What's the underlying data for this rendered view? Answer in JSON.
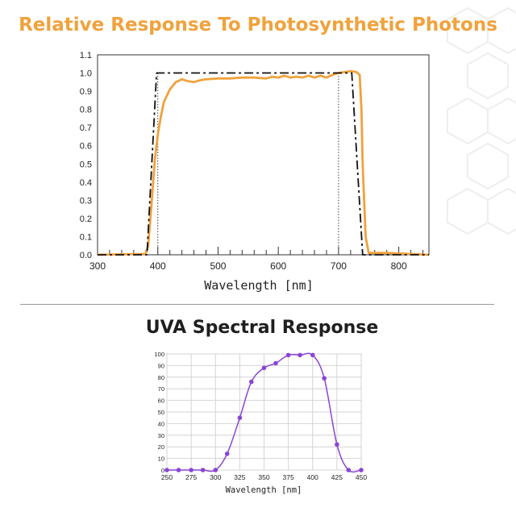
{
  "chart_data": [
    {
      "type": "line",
      "title": "Relative Response To Photosynthetic Photons",
      "xlabel": "Wavelength [nm]",
      "ylabel": "",
      "xlim": [
        300,
        850
      ],
      "ylim": [
        0,
        1.1
      ],
      "x_ticks": [
        "300",
        "400",
        "500",
        "600",
        "700",
        "800"
      ],
      "y_ticks": [
        "0.0",
        "0.1",
        "0.2",
        "0.3",
        "0.4",
        "0.5",
        "0.6",
        "0.7",
        "0.8",
        "0.9",
        "1.0",
        "1.1"
      ],
      "grid": false,
      "vertical_markers": [
        400,
        700
      ],
      "series": [
        {
          "style": "orange-solid",
          "color": "#f0a23c",
          "x": [
            300,
            380,
            384,
            390,
            395,
            400,
            405,
            410,
            420,
            430,
            440,
            450,
            460,
            470,
            480,
            500,
            520,
            540,
            560,
            580,
            590,
            600,
            610,
            620,
            630,
            640,
            650,
            660,
            670,
            680,
            690,
            700,
            710,
            720,
            730,
            735,
            738,
            740,
            745,
            750,
            780,
            850
          ],
          "y": [
            0,
            0.005,
            0.05,
            0.3,
            0.52,
            0.66,
            0.76,
            0.84,
            0.91,
            0.95,
            0.965,
            0.955,
            0.95,
            0.96,
            0.965,
            0.97,
            0.97,
            0.975,
            0.975,
            0.97,
            0.98,
            0.975,
            0.985,
            0.975,
            0.98,
            0.975,
            0.985,
            0.975,
            0.985,
            0.975,
            0.99,
            1.0,
            1.005,
            1.01,
            1.005,
            0.99,
            0.8,
            0.5,
            0.1,
            0.01,
            0.01,
            0
          ]
        },
        {
          "style": "black-dashed",
          "color": "#111111",
          "x": [
            300,
            382,
            398,
            722,
            740,
            850
          ],
          "y": [
            0,
            0,
            1.0,
            1.0,
            0,
            0
          ]
        }
      ]
    },
    {
      "type": "line",
      "title": "UVA Spectral Response",
      "xlabel": "Wavelength [nm]",
      "ylabel": "",
      "xlim": [
        250,
        450
      ],
      "ylim": [
        0,
        100
      ],
      "x_ticks": [
        "250",
        "275",
        "300",
        "325",
        "350",
        "375",
        "400",
        "425",
        "450"
      ],
      "y_ticks": [
        "0",
        "10",
        "20",
        "30",
        "40",
        "50",
        "60",
        "70",
        "80",
        "90",
        "100"
      ],
      "grid": true,
      "series": [
        {
          "color": "#8a44d6",
          "x": [
            250,
            262,
            275,
            287,
            300,
            312,
            325,
            337,
            350,
            362,
            375,
            387,
            400,
            412,
            425,
            437,
            450
          ],
          "y": [
            0,
            0,
            0,
            0,
            0,
            14,
            45,
            76,
            88,
            92,
            99,
            99,
            99,
            79,
            22,
            0,
            0
          ]
        }
      ]
    }
  ]
}
